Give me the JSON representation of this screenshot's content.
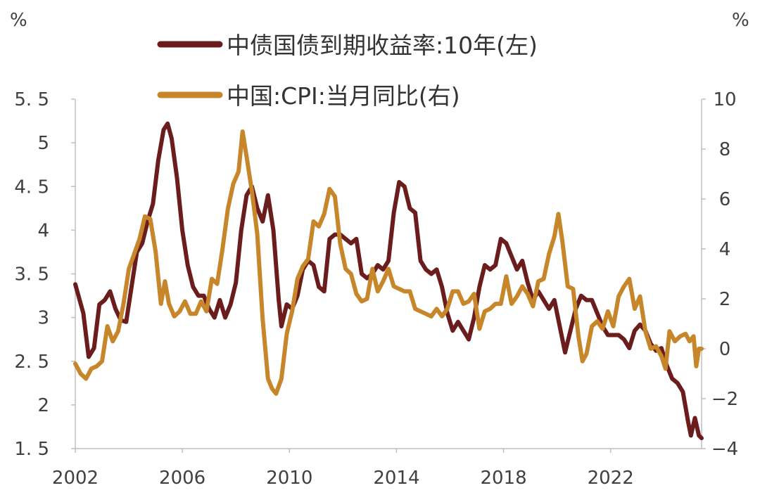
{
  "chart_data": {
    "type": "line",
    "left_unit": "%",
    "right_unit": "%",
    "x_tick_labels": [
      "2002",
      "2006",
      "2010",
      "2014",
      "2018",
      "2022"
    ],
    "x_range": [
      2002.0,
      2025.4
    ],
    "y_left": {
      "range": [
        1.5,
        5.5
      ],
      "tick_labels": [
        "5. 5",
        "5",
        "4. 5",
        "4",
        "3. 5",
        "3",
        "2. 5",
        "2",
        "1. 5"
      ],
      "tick_values": [
        5.5,
        5.0,
        4.5,
        4.0,
        3.5,
        3.0,
        2.5,
        2.0,
        1.5
      ]
    },
    "y_right": {
      "range": [
        -4,
        10
      ],
      "tick_labels": [
        "10",
        "8",
        "6",
        "4",
        "2",
        "0",
        "−2",
        "−4"
      ],
      "tick_values": [
        10,
        8,
        6,
        4,
        2,
        0,
        -2,
        -4
      ]
    },
    "grid": false,
    "legend_position": "top",
    "series": [
      {
        "name": "中债国债到期收益率:10年(左)",
        "axis": "left",
        "color": "#6b1d1d",
        "points": [
          [
            2002.0,
            3.38
          ],
          [
            2002.3,
            3.05
          ],
          [
            2002.5,
            2.55
          ],
          [
            2002.7,
            2.65
          ],
          [
            2002.9,
            3.15
          ],
          [
            2003.1,
            3.2
          ],
          [
            2003.3,
            3.3
          ],
          [
            2003.5,
            3.1
          ],
          [
            2003.7,
            2.97
          ],
          [
            2003.9,
            2.95
          ],
          [
            2004.1,
            3.35
          ],
          [
            2004.3,
            3.75
          ],
          [
            2004.5,
            3.85
          ],
          [
            2004.7,
            4.1
          ],
          [
            2004.9,
            4.3
          ],
          [
            2005.1,
            4.8
          ],
          [
            2005.3,
            5.15
          ],
          [
            2005.45,
            5.22
          ],
          [
            2005.6,
            5.05
          ],
          [
            2005.8,
            4.6
          ],
          [
            2006.0,
            4.0
          ],
          [
            2006.2,
            3.6
          ],
          [
            2006.4,
            3.35
          ],
          [
            2006.6,
            3.25
          ],
          [
            2006.8,
            3.25
          ],
          [
            2007.0,
            3.1
          ],
          [
            2007.2,
            3.0
          ],
          [
            2007.4,
            3.2
          ],
          [
            2007.6,
            3.0
          ],
          [
            2007.8,
            3.15
          ],
          [
            2008.0,
            3.4
          ],
          [
            2008.2,
            4.0
          ],
          [
            2008.4,
            4.4
          ],
          [
            2008.6,
            4.5
          ],
          [
            2008.8,
            4.25
          ],
          [
            2009.0,
            4.1
          ],
          [
            2009.2,
            4.4
          ],
          [
            2009.4,
            4.0
          ],
          [
            2009.6,
            3.2
          ],
          [
            2009.7,
            2.9
          ],
          [
            2009.9,
            3.15
          ],
          [
            2010.1,
            3.1
          ],
          [
            2010.3,
            3.25
          ],
          [
            2010.5,
            3.55
          ],
          [
            2010.7,
            3.65
          ],
          [
            2010.9,
            3.6
          ],
          [
            2011.1,
            3.35
          ],
          [
            2011.3,
            3.3
          ],
          [
            2011.5,
            3.9
          ],
          [
            2011.7,
            3.95
          ],
          [
            2011.9,
            3.95
          ],
          [
            2012.1,
            3.9
          ],
          [
            2012.3,
            3.85
          ],
          [
            2012.5,
            3.9
          ],
          [
            2012.7,
            3.5
          ],
          [
            2012.9,
            3.45
          ],
          [
            2013.1,
            3.5
          ],
          [
            2013.3,
            3.6
          ],
          [
            2013.5,
            3.55
          ],
          [
            2013.7,
            3.65
          ],
          [
            2013.9,
            4.2
          ],
          [
            2014.1,
            4.55
          ],
          [
            2014.3,
            4.5
          ],
          [
            2014.5,
            4.25
          ],
          [
            2014.7,
            4.2
          ],
          [
            2014.9,
            3.65
          ],
          [
            2015.1,
            3.55
          ],
          [
            2015.3,
            3.5
          ],
          [
            2015.5,
            3.55
          ],
          [
            2015.7,
            3.35
          ],
          [
            2015.9,
            3.05
          ],
          [
            2016.1,
            2.85
          ],
          [
            2016.3,
            2.95
          ],
          [
            2016.5,
            2.85
          ],
          [
            2016.7,
            2.75
          ],
          [
            2016.9,
            3.0
          ],
          [
            2017.1,
            3.35
          ],
          [
            2017.3,
            3.6
          ],
          [
            2017.5,
            3.55
          ],
          [
            2017.7,
            3.6
          ],
          [
            2017.9,
            3.9
          ],
          [
            2018.1,
            3.85
          ],
          [
            2018.3,
            3.7
          ],
          [
            2018.5,
            3.55
          ],
          [
            2018.7,
            3.65
          ],
          [
            2018.9,
            3.4
          ],
          [
            2019.1,
            3.2
          ],
          [
            2019.3,
            3.3
          ],
          [
            2019.5,
            3.2
          ],
          [
            2019.7,
            3.1
          ],
          [
            2019.9,
            3.2
          ],
          [
            2020.1,
            2.9
          ],
          [
            2020.3,
            2.6
          ],
          [
            2020.5,
            2.85
          ],
          [
            2020.7,
            3.1
          ],
          [
            2020.9,
            3.25
          ],
          [
            2021.1,
            3.2
          ],
          [
            2021.3,
            3.2
          ],
          [
            2021.5,
            3.05
          ],
          [
            2021.7,
            2.9
          ],
          [
            2021.9,
            2.8
          ],
          [
            2022.1,
            2.8
          ],
          [
            2022.3,
            2.8
          ],
          [
            2022.5,
            2.75
          ],
          [
            2022.7,
            2.65
          ],
          [
            2022.9,
            2.85
          ],
          [
            2023.1,
            2.92
          ],
          [
            2023.3,
            2.85
          ],
          [
            2023.5,
            2.7
          ],
          [
            2023.7,
            2.62
          ],
          [
            2023.9,
            2.65
          ],
          [
            2024.1,
            2.45
          ],
          [
            2024.3,
            2.3
          ],
          [
            2024.5,
            2.25
          ],
          [
            2024.7,
            2.15
          ],
          [
            2024.9,
            1.8
          ],
          [
            2025.0,
            1.65
          ],
          [
            2025.15,
            1.85
          ],
          [
            2025.3,
            1.65
          ],
          [
            2025.4,
            1.62
          ]
        ]
      },
      {
        "name": "中国:CPI:当月同比(右)",
        "axis": "right",
        "color": "#c8862a",
        "points": [
          [
            2002.0,
            -0.6
          ],
          [
            2002.2,
            -1.0
          ],
          [
            2002.4,
            -1.2
          ],
          [
            2002.6,
            -0.8
          ],
          [
            2002.8,
            -0.7
          ],
          [
            2003.0,
            -0.5
          ],
          [
            2003.2,
            0.9
          ],
          [
            2003.4,
            0.3
          ],
          [
            2003.6,
            0.7
          ],
          [
            2003.8,
            1.8
          ],
          [
            2004.0,
            3.2
          ],
          [
            2004.2,
            3.8
          ],
          [
            2004.4,
            4.4
          ],
          [
            2004.6,
            5.3
          ],
          [
            2004.8,
            5.2
          ],
          [
            2005.0,
            3.9
          ],
          [
            2005.2,
            1.8
          ],
          [
            2005.35,
            2.7
          ],
          [
            2005.5,
            1.8
          ],
          [
            2005.7,
            1.3
          ],
          [
            2005.9,
            1.5
          ],
          [
            2006.1,
            1.9
          ],
          [
            2006.3,
            1.4
          ],
          [
            2006.5,
            1.4
          ],
          [
            2006.7,
            1.9
          ],
          [
            2006.9,
            1.5
          ],
          [
            2007.1,
            2.8
          ],
          [
            2007.3,
            2.6
          ],
          [
            2007.5,
            4.0
          ],
          [
            2007.7,
            5.6
          ],
          [
            2007.9,
            6.6
          ],
          [
            2008.1,
            7.1
          ],
          [
            2008.25,
            8.7
          ],
          [
            2008.4,
            7.7
          ],
          [
            2008.6,
            6.3
          ],
          [
            2008.8,
            4.6
          ],
          [
            2009.0,
            1.2
          ],
          [
            2009.2,
            -1.2
          ],
          [
            2009.35,
            -1.6
          ],
          [
            2009.5,
            -1.8
          ],
          [
            2009.7,
            -1.2
          ],
          [
            2009.9,
            0.6
          ],
          [
            2010.1,
            1.5
          ],
          [
            2010.3,
            2.8
          ],
          [
            2010.5,
            3.3
          ],
          [
            2010.7,
            3.6
          ],
          [
            2010.9,
            5.1
          ],
          [
            2011.1,
            4.9
          ],
          [
            2011.3,
            5.4
          ],
          [
            2011.5,
            6.4
          ],
          [
            2011.7,
            6.1
          ],
          [
            2011.9,
            4.2
          ],
          [
            2012.1,
            3.2
          ],
          [
            2012.3,
            3.0
          ],
          [
            2012.5,
            2.2
          ],
          [
            2012.7,
            1.9
          ],
          [
            2012.9,
            2.0
          ],
          [
            2013.1,
            3.2
          ],
          [
            2013.3,
            2.3
          ],
          [
            2013.5,
            2.7
          ],
          [
            2013.7,
            3.2
          ],
          [
            2013.9,
            2.5
          ],
          [
            2014.1,
            2.4
          ],
          [
            2014.3,
            2.3
          ],
          [
            2014.5,
            2.3
          ],
          [
            2014.7,
            1.6
          ],
          [
            2014.9,
            1.5
          ],
          [
            2015.1,
            1.4
          ],
          [
            2015.3,
            1.3
          ],
          [
            2015.5,
            1.6
          ],
          [
            2015.7,
            1.3
          ],
          [
            2015.9,
            1.6
          ],
          [
            2016.1,
            2.3
          ],
          [
            2016.3,
            2.3
          ],
          [
            2016.5,
            1.8
          ],
          [
            2016.7,
            1.9
          ],
          [
            2016.9,
            2.2
          ],
          [
            2017.1,
            0.8
          ],
          [
            2017.3,
            1.5
          ],
          [
            2017.5,
            1.6
          ],
          [
            2017.7,
            1.8
          ],
          [
            2017.9,
            1.8
          ],
          [
            2018.1,
            2.9
          ],
          [
            2018.3,
            1.8
          ],
          [
            2018.5,
            2.1
          ],
          [
            2018.7,
            2.5
          ],
          [
            2018.9,
            2.2
          ],
          [
            2019.1,
            1.7
          ],
          [
            2019.3,
            2.7
          ],
          [
            2019.5,
            2.8
          ],
          [
            2019.7,
            3.8
          ],
          [
            2019.9,
            4.5
          ],
          [
            2020.05,
            5.4
          ],
          [
            2020.2,
            4.3
          ],
          [
            2020.4,
            2.5
          ],
          [
            2020.6,
            2.4
          ],
          [
            2020.8,
            0.5
          ],
          [
            2020.95,
            -0.5
          ],
          [
            2021.1,
            -0.2
          ],
          [
            2021.3,
            0.9
          ],
          [
            2021.5,
            1.1
          ],
          [
            2021.7,
            0.8
          ],
          [
            2021.9,
            1.5
          ],
          [
            2022.1,
            0.9
          ],
          [
            2022.3,
            2.1
          ],
          [
            2022.5,
            2.5
          ],
          [
            2022.7,
            2.8
          ],
          [
            2022.9,
            1.6
          ],
          [
            2023.1,
            2.1
          ],
          [
            2023.3,
            0.7
          ],
          [
            2023.5,
            0.0
          ],
          [
            2023.7,
            0.1
          ],
          [
            2023.9,
            -0.3
          ],
          [
            2024.05,
            -0.8
          ],
          [
            2024.2,
            0.7
          ],
          [
            2024.4,
            0.3
          ],
          [
            2024.6,
            0.5
          ],
          [
            2024.8,
            0.6
          ],
          [
            2024.95,
            0.3
          ],
          [
            2025.1,
            0.5
          ],
          [
            2025.2,
            -0.7
          ],
          [
            2025.3,
            0.0
          ],
          [
            2025.4,
            0.0
          ]
        ]
      }
    ]
  }
}
